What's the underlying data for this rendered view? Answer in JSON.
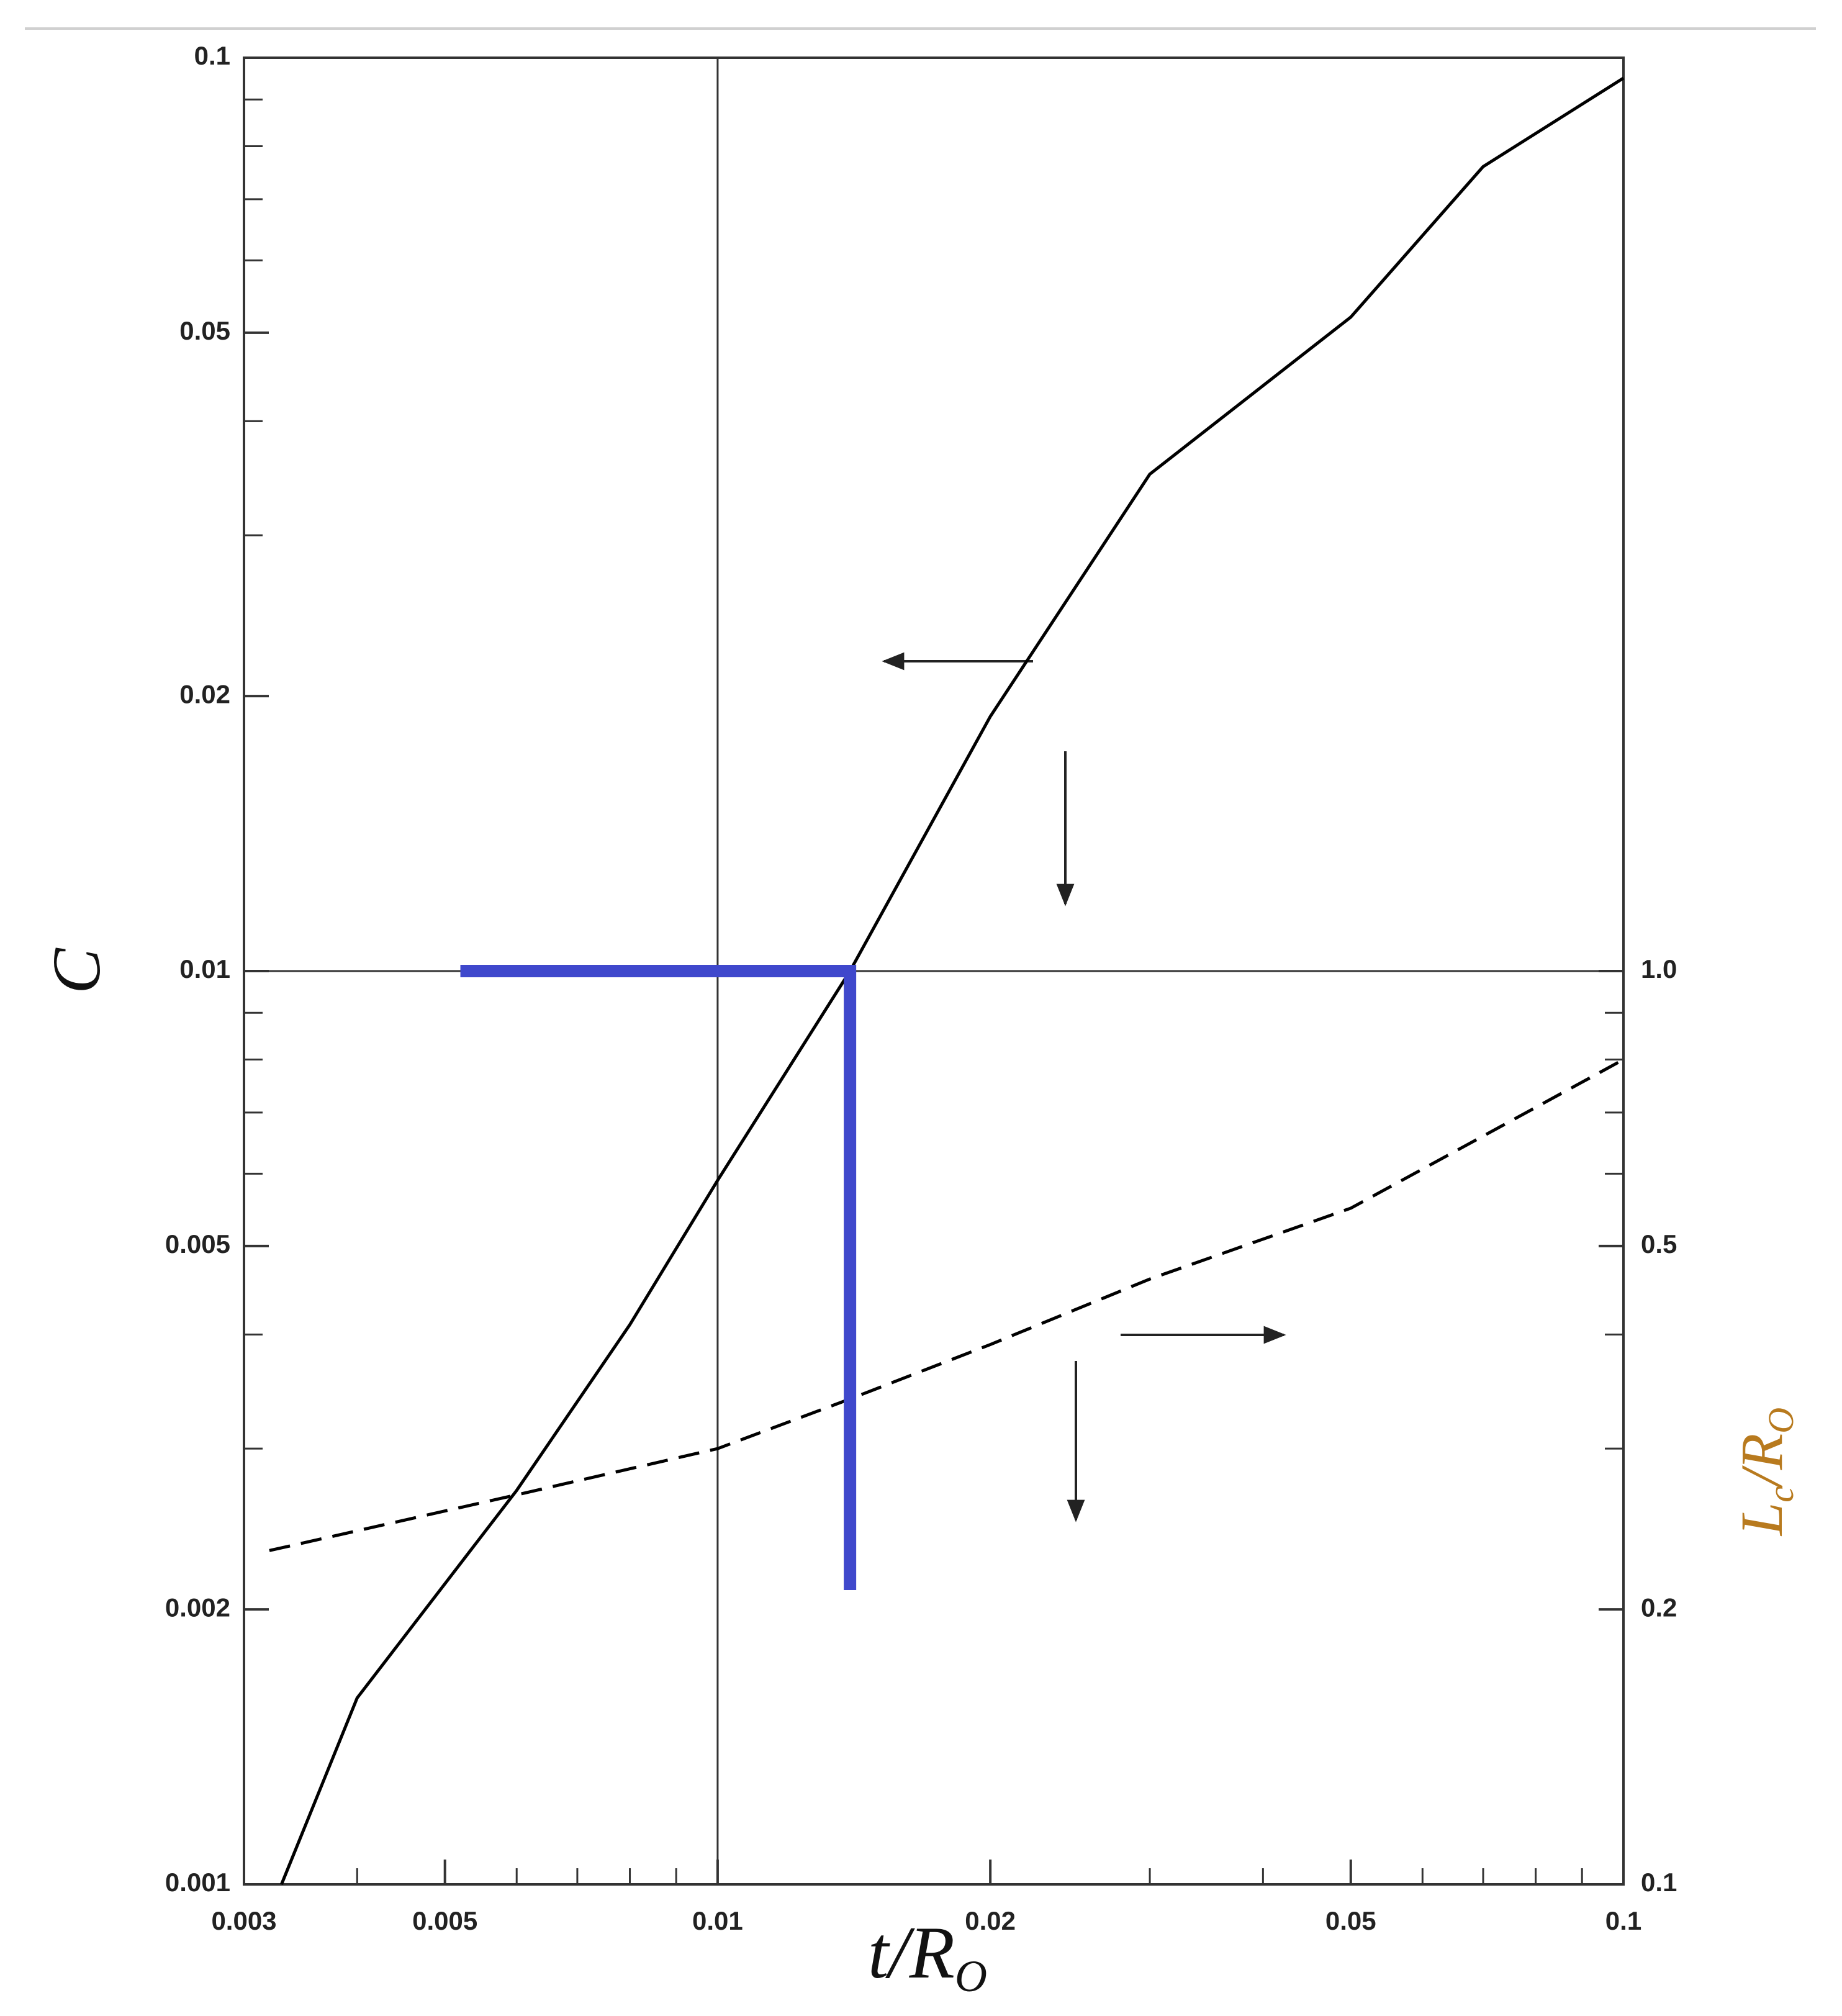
{
  "chart_data": {
    "type": "line",
    "xlog": true,
    "ylog": true,
    "y2log": true,
    "xlim": [
      0.003,
      0.1
    ],
    "xticks": [
      0.003,
      0.005,
      0.01,
      0.02,
      0.05,
      0.1
    ],
    "xminorticks": [
      0.004,
      0.006,
      0.007,
      0.008,
      0.009,
      0.03,
      0.04,
      0.06,
      0.07,
      0.08,
      0.09
    ],
    "ylim": [
      0.001,
      0.1
    ],
    "yticks": [
      0.001,
      0.002,
      0.005,
      0.01,
      0.02,
      0.05,
      0.1
    ],
    "yminorticks": [
      0.003,
      0.004,
      0.006,
      0.007,
      0.008,
      0.009,
      0.03,
      0.04,
      0.06,
      0.07,
      0.08,
      0.09
    ],
    "y2lim": [
      0.1,
      10
    ],
    "y2ticks": [
      0.1,
      0.2,
      0.5,
      {
        "value": 1,
        "label": "1.0"
      }
    ],
    "y2minorticks": [
      0.3,
      0.4,
      0.6,
      0.7,
      0.8,
      0.9
    ],
    "gridx": [
      0.01
    ],
    "gridy": [
      0.01
    ],
    "xlabel": {
      "main": "t/R",
      "sub": "O"
    },
    "ylabel": "C",
    "y2label": [
      {
        "text": "L"
      },
      {
        "text": "c",
        "sub": true
      },
      {
        "text": "/R"
      },
      {
        "text": "O",
        "sub": true
      }
    ],
    "y2label_color": "#b87a1e",
    "series": [
      {
        "color": "#000000",
        "style": "solid",
        "x": [
          0.0033,
          0.004,
          0.006,
          0.008,
          0.01,
          0.014,
          0.02,
          0.03,
          0.05,
          0.07,
          0.1
        ],
        "values": [
          0.001,
          0.0016,
          0.0027,
          0.0041,
          0.0059,
          0.01,
          0.019,
          0.035,
          0.052,
          0.076,
          0.095
        ]
      },
      {
        "color": "#000000",
        "style": "dashed",
        "axis": "y2",
        "x": [
          0.0032,
          0.006,
          0.01,
          0.014,
          0.02,
          0.03,
          0.05,
          0.1
        ],
        "values": [
          0.232,
          0.267,
          0.3,
          0.34,
          0.39,
          0.46,
          0.55,
          0.8
        ]
      }
    ],
    "guide": {
      "color": "#3f48cc",
      "x": [
        0.0052,
        0.014,
        0.014
      ],
      "values": [
        0.01,
        0.01,
        0.0021
      ]
    }
  }
}
